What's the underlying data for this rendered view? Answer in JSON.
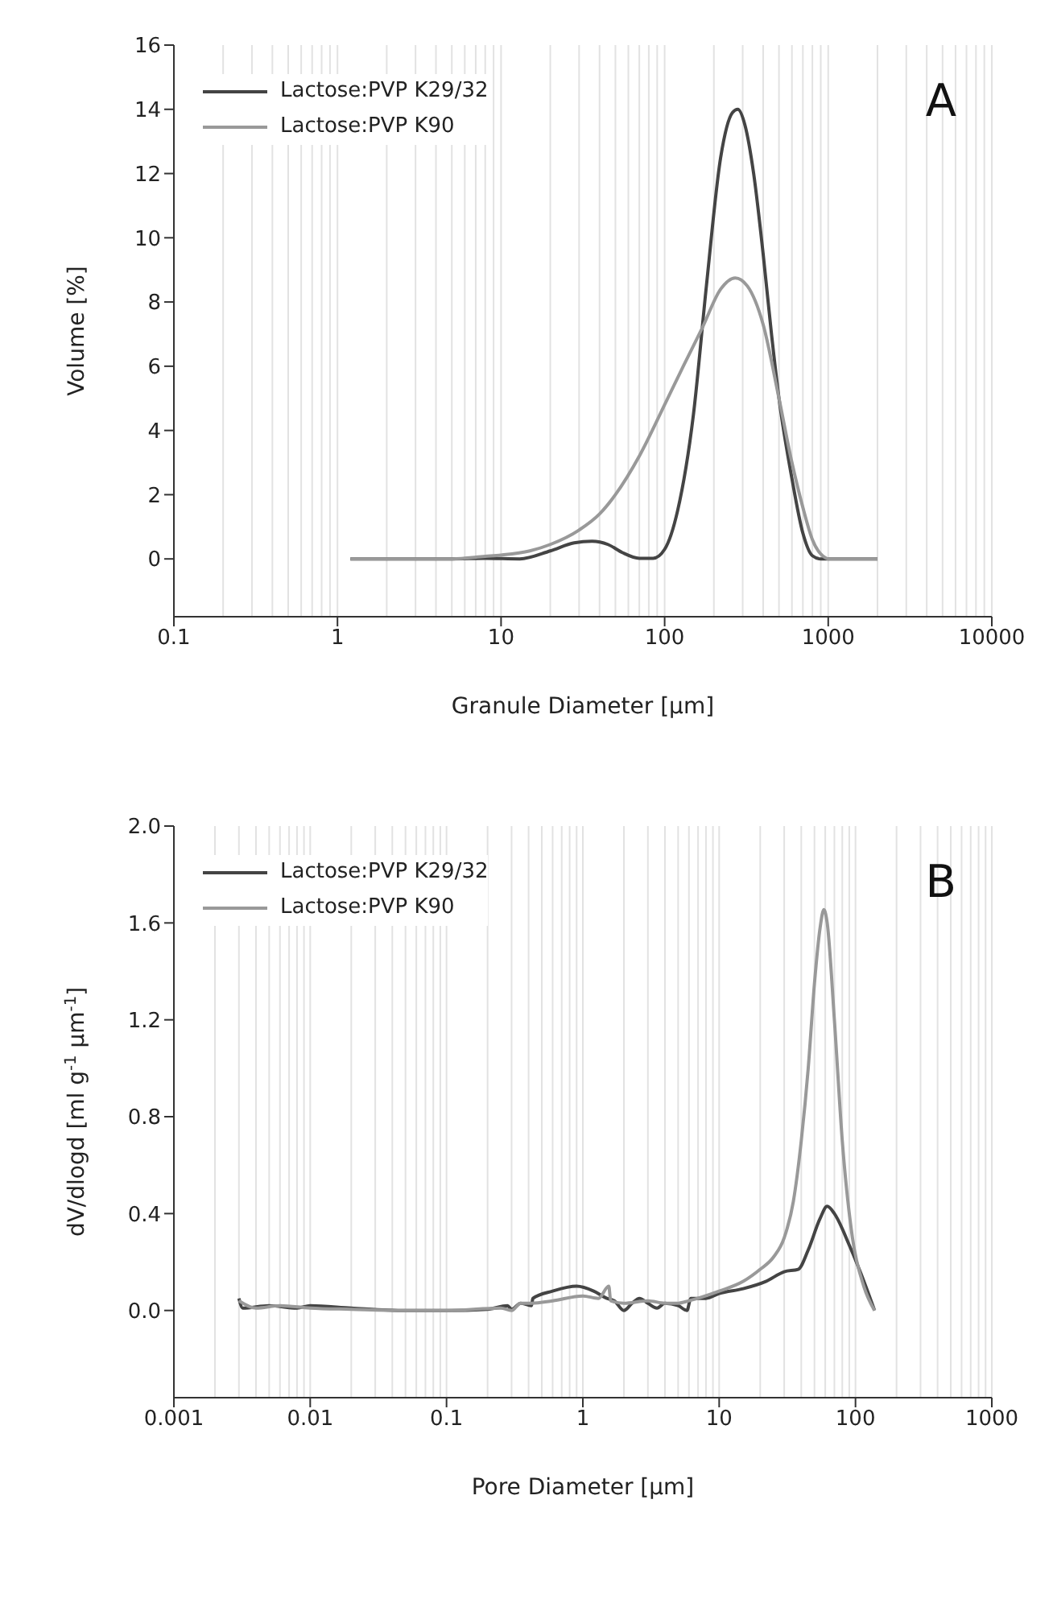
{
  "chart_data": [
    {
      "type": "line",
      "title": null,
      "annotations": [
        "A"
      ],
      "xlabel": "Granule Diameter [μm]",
      "ylabel": "Volume [%]",
      "log": "x",
      "grid": "x",
      "legend": "top left",
      "marker": "none",
      "line_style": "solid",
      "xlim": [
        0.1,
        10000
      ],
      "xticks": [
        0.1,
        1,
        10,
        100,
        1000,
        10000
      ],
      "ylim": [
        -1.8,
        16
      ],
      "yticks": [
        0,
        2,
        4,
        6,
        8,
        10,
        12,
        14,
        16
      ],
      "series": [
        {
          "name": "Lactose:PVP K29/32",
          "color": "#444444",
          "x": [
            1.2,
            5,
            8,
            13,
            20,
            28,
            36,
            45,
            55,
            70,
            85,
            100,
            120,
            150,
            180,
            220,
            260,
            280,
            310,
            350,
            400,
            450,
            500,
            600,
            700,
            800,
            900,
            2000
          ],
          "values": [
            0,
            0,
            0.02,
            0,
            0.25,
            0.5,
            0.55,
            0.45,
            0.2,
            0.02,
            0.02,
            0.3,
            1.5,
            4.5,
            8.5,
            12.5,
            13.9,
            14,
            13.5,
            12,
            9.5,
            7,
            5,
            2.5,
            0.8,
            0.1,
            0,
            0
          ]
        },
        {
          "name": "Lactose:PVP K90",
          "color": "#999999",
          "x": [
            1.2,
            5,
            8,
            10,
            15,
            20,
            30,
            40,
            50,
            70,
            100,
            130,
            170,
            220,
            270,
            320,
            400,
            500,
            600,
            700,
            800,
            950,
            1000,
            2000
          ],
          "values": [
            0,
            0,
            0.08,
            0.12,
            0.25,
            0.45,
            0.9,
            1.4,
            2,
            3.2,
            4.8,
            6,
            7.2,
            8.4,
            8.75,
            8.5,
            7.3,
            5,
            3,
            1.6,
            0.6,
            0.05,
            0,
            0
          ]
        }
      ]
    },
    {
      "type": "line",
      "annotations": [
        "B"
      ],
      "xlabel": "Pore Diameter [μm]",
      "ylabel": "dV/dlogd [ml g$^{-1}$ μm$^{-1}$]",
      "log": "x",
      "grid": "x",
      "legend": "top left",
      "marker": "none",
      "line_style": "solid",
      "xlim": [
        0.001,
        1000
      ],
      "xticks": [
        0.001,
        0.01,
        0.1,
        1,
        10,
        100,
        1000
      ],
      "ylim": [
        -0.36,
        2.0
      ],
      "yticks": [
        {
          "value": 0,
          "label": "0.0"
        },
        0.4,
        0.8,
        1.2,
        1.6,
        {
          "value": 2,
          "label": "2.0"
        }
      ],
      "series": [
        {
          "name": "Lactose:PVP K29/32",
          "color": "#444444",
          "x": [
            0.003,
            0.0032,
            0.005,
            0.008,
            0.01,
            0.02,
            0.05,
            0.1,
            0.2,
            0.28,
            0.3,
            0.35,
            0.42,
            0.43,
            0.6,
            0.9,
            1.2,
            1.5,
            1.7,
            2,
            2.3,
            2.6,
            3,
            3.5,
            4,
            5,
            5.8,
            6.2,
            8,
            10,
            15,
            22,
            30,
            38,
            45,
            55,
            62,
            70,
            90,
            110,
            138
          ],
          "values": [
            0.05,
            0.01,
            0.02,
            0.01,
            0.02,
            0.01,
            0,
            0,
            0.005,
            0.02,
            0.005,
            0.03,
            0.02,
            0.05,
            0.08,
            0.1,
            0.08,
            0.05,
            0.04,
            0,
            0.03,
            0.05,
            0.03,
            0.01,
            0.03,
            0.02,
            0,
            0.05,
            0.05,
            0.07,
            0.09,
            0.12,
            0.16,
            0.17,
            0.25,
            0.38,
            0.43,
            0.4,
            0.27,
            0.15,
            0
          ]
        },
        {
          "name": "Lactose:PVP K90",
          "color": "#999999",
          "x": [
            0.003,
            0.004,
            0.006,
            0.01,
            0.02,
            0.05,
            0.1,
            0.25,
            0.3,
            0.35,
            0.42,
            0.6,
            1,
            1.3,
            1.55,
            1.6,
            2,
            3,
            4,
            5,
            6,
            10,
            15,
            20,
            25,
            30,
            35,
            40,
            45,
            50,
            55,
            58.6,
            62,
            70,
            80,
            95,
            115,
            138
          ],
          "values": [
            0.04,
            0.01,
            0.02,
            0.01,
            0.005,
            0,
            0,
            0.01,
            0,
            0.03,
            0.03,
            0.04,
            0.06,
            0.05,
            0.1,
            0.04,
            0.03,
            0.04,
            0.03,
            0.03,
            0.04,
            0.08,
            0.12,
            0.17,
            0.22,
            0.3,
            0.45,
            0.7,
            1.0,
            1.35,
            1.58,
            1.655,
            1.6,
            1.2,
            0.7,
            0.3,
            0.1,
            0
          ]
        }
      ]
    }
  ]
}
